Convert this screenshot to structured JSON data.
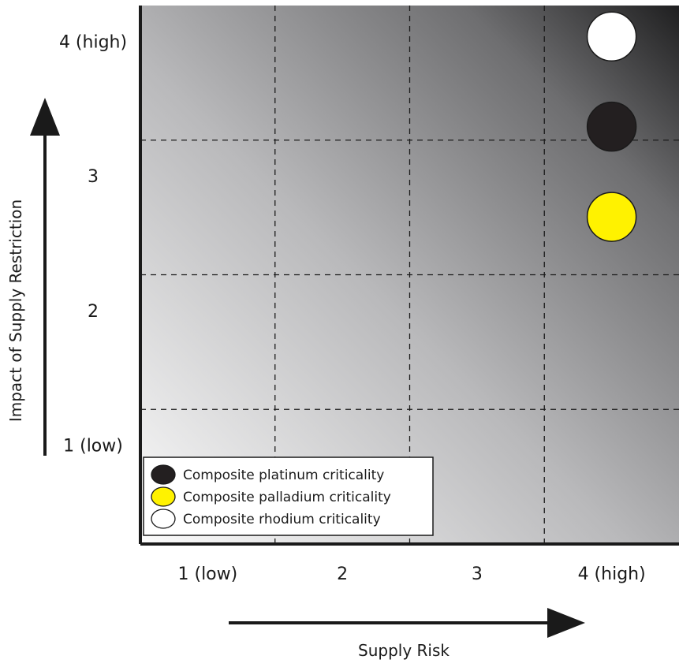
{
  "chart_data": {
    "type": "scatter",
    "title": "",
    "xlabel": "Supply Risk",
    "ylabel": "Impact of Supply Restriction",
    "x_ticks": [
      "1 (low)",
      "2",
      "3",
      "4 (high)"
    ],
    "y_ticks": [
      "1 (low)",
      "2",
      "3",
      "4 (high)"
    ],
    "xlim": [
      0.5,
      4.5
    ],
    "ylim": [
      0.5,
      4.5
    ],
    "grid": true,
    "background": "gradient light (bottom-left) to dark (top-right)",
    "legend_position": "bottom-left",
    "series": [
      {
        "name": "Composite platinum criticality",
        "x": 4.0,
        "y": 3.6,
        "color": "#231f20"
      },
      {
        "name": "Composite palladium criticality",
        "x": 4.0,
        "y": 2.93,
        "color": "#fff200"
      },
      {
        "name": "Composite rhodium criticality",
        "x": 4.0,
        "y": 4.27,
        "color": "#ffffff"
      }
    ]
  }
}
